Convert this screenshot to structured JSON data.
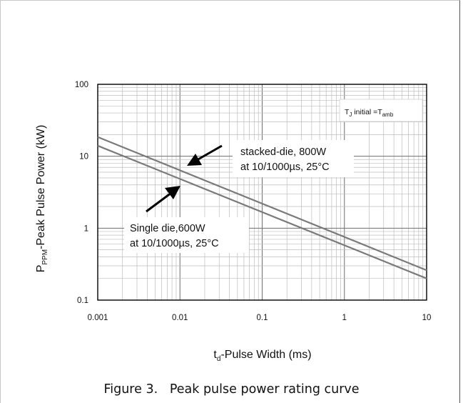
{
  "chart_data": {
    "type": "line",
    "x_scale": "log",
    "y_scale": "log",
    "xlim": [
      0.001,
      10
    ],
    "ylim": [
      0.1,
      100
    ],
    "x_ticks": [
      "0.001",
      "0.01",
      "0.1",
      "1",
      "10"
    ],
    "y_ticks": [
      "0.1",
      "1",
      "10",
      "100"
    ],
    "xlabel": {
      "main": "t",
      "sub": "d",
      "rest": "-Pulse Width (ms)"
    },
    "ylabel": {
      "main": "P",
      "sub": "PPM",
      "rest": "-Peak Pulse Power (kW)"
    },
    "grid": true,
    "series": [
      {
        "x": [
          0.001,
          10
        ],
        "y": [
          18.5,
          0.26
        ],
        "color": "#7a7a7a"
      },
      {
        "x": [
          0.001,
          10
        ],
        "y": [
          14,
          0.2
        ],
        "color": "#7a7a7a"
      }
    ],
    "annotations": [
      {
        "lines": [
          "stacked-die, 800W",
          "at 10/1000µs, 25°C"
        ]
      },
      {
        "lines": [
          "Single die,600W",
          "at 10/1000µs, 25°C"
        ]
      }
    ],
    "condition": {
      "a": "T",
      "a_sub": "J",
      "b": " initial =T",
      "b_sub": "amb"
    }
  },
  "caption": "Figure 3.   Peak pulse power rating curve"
}
